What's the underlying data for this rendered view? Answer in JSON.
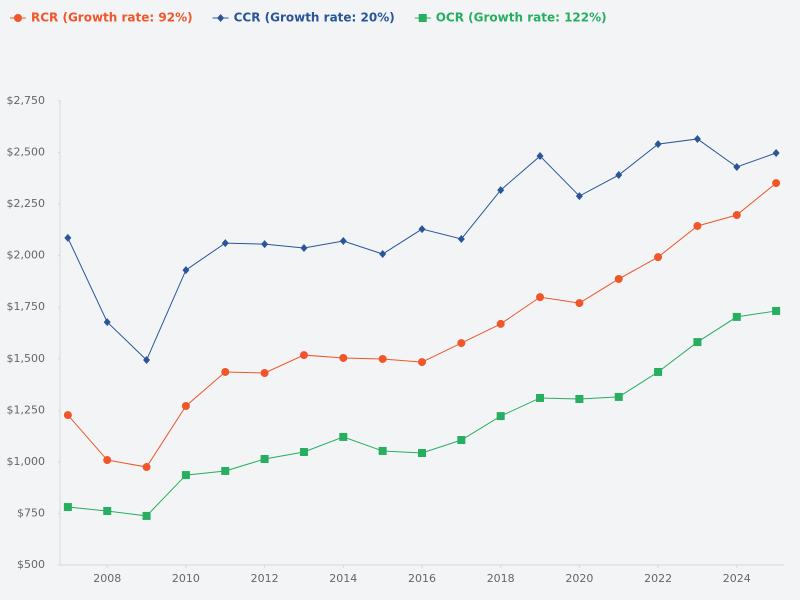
{
  "chart_data": {
    "type": "line",
    "x": [
      2007,
      2008,
      2009,
      2010,
      2011,
      2012,
      2013,
      2014,
      2015,
      2016,
      2017,
      2018,
      2019,
      2020,
      2021,
      2022,
      2023,
      2024,
      2025
    ],
    "series": [
      {
        "name": "RCR (Growth rate: 92%)",
        "color": "#f0562a",
        "marker": "circle",
        "values": [
          1227,
          1009,
          975,
          1271,
          1436,
          1431,
          1518,
          1504,
          1499,
          1484,
          1576,
          1669,
          1799,
          1770,
          1887,
          1993,
          2144,
          2197,
          2352
        ]
      },
      {
        "name": "CCR (Growth rate: 20%)",
        "color": "#2a5599",
        "marker": "diamond",
        "values": [
          2086,
          1678,
          1494,
          1930,
          2061,
          2056,
          2037,
          2071,
          2008,
          2129,
          2081,
          2318,
          2483,
          2289,
          2391,
          2541,
          2566,
          2430,
          2498
        ]
      },
      {
        "name": "OCR (Growth rate: 122%)",
        "color": "#27ae60",
        "marker": "square",
        "values": [
          781,
          762,
          738,
          936,
          956,
          1014,
          1048,
          1121,
          1053,
          1043,
          1106,
          1222,
          1310,
          1305,
          1315,
          1436,
          1581,
          1703,
          1732
        ]
      }
    ],
    "xlim": [
      2006.8,
      2025.2
    ],
    "xticks": [
      2008,
      2010,
      2012,
      2014,
      2016,
      2018,
      2020,
      2022,
      2024
    ],
    "ylim": [
      500,
      2750
    ],
    "yticks": [
      {
        "value": 500,
        "label": "$500"
      },
      {
        "value": 750,
        "label": "$750"
      },
      {
        "value": 1000,
        "label": "$1,000"
      },
      {
        "value": 1250,
        "label": "$1,250"
      },
      {
        "value": 1500,
        "label": "$1,500"
      },
      {
        "value": 1750,
        "label": "$1,750"
      },
      {
        "value": 2000,
        "label": "$2,000"
      },
      {
        "value": 2250,
        "label": "$2,250"
      },
      {
        "value": 2500,
        "label": "$2,500"
      },
      {
        "value": 2750,
        "label": "$2,750"
      }
    ],
    "grid": false,
    "legend": "top-left"
  }
}
